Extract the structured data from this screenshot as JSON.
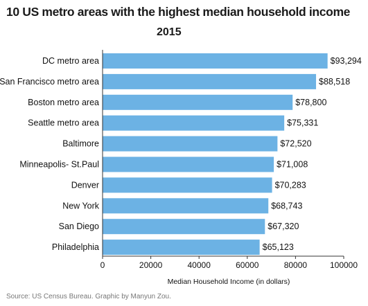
{
  "title": "10 US metro areas with the highest median household income",
  "subtitle": "2015",
  "source": "Source: US Census Bureau. Graphic by Manyun Zou.",
  "colors": {
    "bar": "#6cb2e4",
    "axis": "#333333"
  },
  "chart_data": {
    "type": "bar",
    "orientation": "horizontal",
    "categories": [
      "DC metro area",
      "San Francisco metro area",
      "Boston metro area",
      "Seattle metro area",
      "Baltimore",
      "Minneapolis- St.Paul",
      "Denver",
      "New York",
      "San Diego",
      "Philadelphia"
    ],
    "values": [
      93294,
      88518,
      78800,
      75331,
      72520,
      71008,
      70283,
      68743,
      67320,
      65123
    ],
    "value_labels": [
      "$93,294",
      "$88,518",
      "$78,800",
      "$75,331",
      "$72,520",
      "$71,008",
      "$70,283",
      "$68,743",
      "$67,320",
      "$65,123"
    ],
    "xlabel": "Median Household Income (in dollars)",
    "ylabel": "",
    "xlim": [
      0,
      100000
    ],
    "xticks": [
      0,
      20000,
      40000,
      60000,
      80000,
      100000
    ],
    "xtick_labels": [
      "0",
      "20000",
      "40000",
      "60000",
      "80000",
      "100000"
    ],
    "grid": false,
    "legend": "none"
  }
}
